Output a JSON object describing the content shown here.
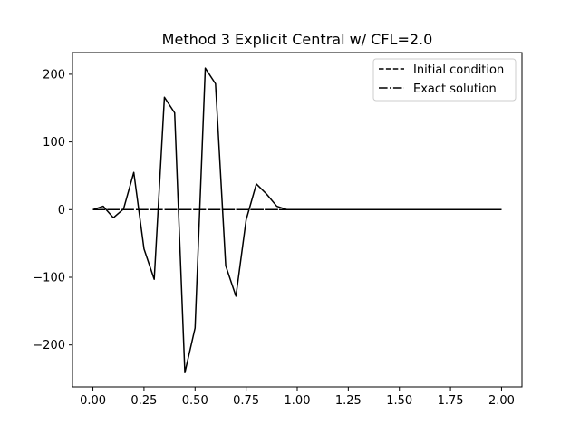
{
  "chart_data": {
    "type": "line",
    "title": "Method 3 Explicit Central w/ CFL=2.0",
    "xlabel": "",
    "ylabel": "",
    "xlim": [
      -0.1,
      2.1
    ],
    "ylim": [
      -262,
      232
    ],
    "x_ticks": [
      0.0,
      0.25,
      0.5,
      0.75,
      1.0,
      1.25,
      1.5,
      1.75,
      2.0
    ],
    "x_tick_labels": [
      "0.00",
      "0.25",
      "0.50",
      "0.75",
      "1.00",
      "1.25",
      "1.50",
      "1.75",
      "2.00"
    ],
    "y_ticks": [
      -200,
      -100,
      0,
      100,
      200
    ],
    "y_tick_labels": [
      "−200",
      "−100",
      "0",
      "100",
      "200"
    ],
    "grid": false,
    "legend": "top-right",
    "series": [
      {
        "name": "Initial condition",
        "style": "dashed",
        "color": "#000000",
        "x": [
          0.0,
          0.05,
          0.1,
          0.15,
          0.2,
          0.25,
          0.3,
          0.35,
          0.4,
          0.45,
          0.5,
          0.55,
          0.6,
          0.65,
          0.7,
          0.75,
          0.8,
          0.85,
          0.9,
          0.95,
          1.0,
          1.05,
          1.1,
          1.15,
          1.2,
          1.25,
          1.3,
          1.35,
          1.4,
          1.45,
          1.5,
          1.55,
          1.6,
          1.65,
          1.7,
          1.75,
          1.8,
          1.85,
          1.9,
          1.95,
          2.0
        ],
        "y": [
          0,
          0,
          0,
          0,
          0,
          0,
          0,
          0,
          0,
          0,
          0,
          0,
          0,
          0,
          0,
          0,
          0,
          0,
          0,
          0,
          0,
          0,
          0,
          0,
          0,
          0,
          0,
          0,
          0,
          0,
          0,
          0,
          0,
          0,
          0,
          0,
          0,
          0,
          0,
          0,
          0
        ]
      },
      {
        "name": "Exact solution",
        "style": "dashdot",
        "color": "#000000",
        "x": [
          0.0,
          0.05,
          0.1,
          0.15,
          0.2,
          0.25,
          0.3,
          0.35,
          0.4,
          0.45,
          0.5,
          0.55,
          0.6,
          0.65,
          0.7,
          0.75,
          0.8,
          0.85,
          0.9,
          0.95,
          1.0,
          1.05,
          1.1,
          1.15,
          1.2,
          1.25,
          1.3,
          1.35,
          1.4,
          1.45,
          1.5,
          1.55,
          1.6,
          1.65,
          1.7,
          1.75,
          1.8,
          1.85,
          1.9,
          1.95,
          2.0
        ],
        "y": [
          0,
          0,
          0,
          0,
          0,
          0,
          0,
          0,
          0,
          0,
          0,
          0,
          0,
          0,
          0,
          0,
          0,
          0,
          0,
          0,
          0,
          0,
          0,
          0,
          0,
          0,
          0,
          0,
          0,
          0,
          0,
          0,
          0,
          0,
          0,
          0,
          0,
          0,
          0,
          0,
          0
        ]
      },
      {
        "style": "solid",
        "color": "#000000",
        "x": [
          0.0,
          0.05,
          0.1,
          0.15,
          0.2,
          0.25,
          0.3,
          0.35,
          0.4,
          0.45,
          0.5,
          0.55,
          0.6,
          0.65,
          0.7,
          0.75,
          0.8,
          0.85,
          0.9,
          0.95,
          1.0,
          1.05,
          1.1,
          1.15,
          1.2,
          1.25,
          1.3,
          1.35,
          1.4,
          1.45,
          1.5,
          1.55,
          1.6,
          1.65,
          1.7,
          1.75,
          1.8,
          1.85,
          1.9,
          1.95,
          2.0
        ],
        "y": [
          0,
          5,
          -12,
          1,
          55,
          -58,
          -103,
          166,
          143,
          -241,
          -175,
          209,
          186,
          -83,
          -128,
          -15,
          38,
          23,
          5,
          0,
          0,
          0,
          0,
          0,
          0,
          0,
          0,
          0,
          0,
          0,
          0,
          0,
          0,
          0,
          0,
          0,
          0,
          0,
          0,
          0,
          0
        ]
      }
    ]
  }
}
